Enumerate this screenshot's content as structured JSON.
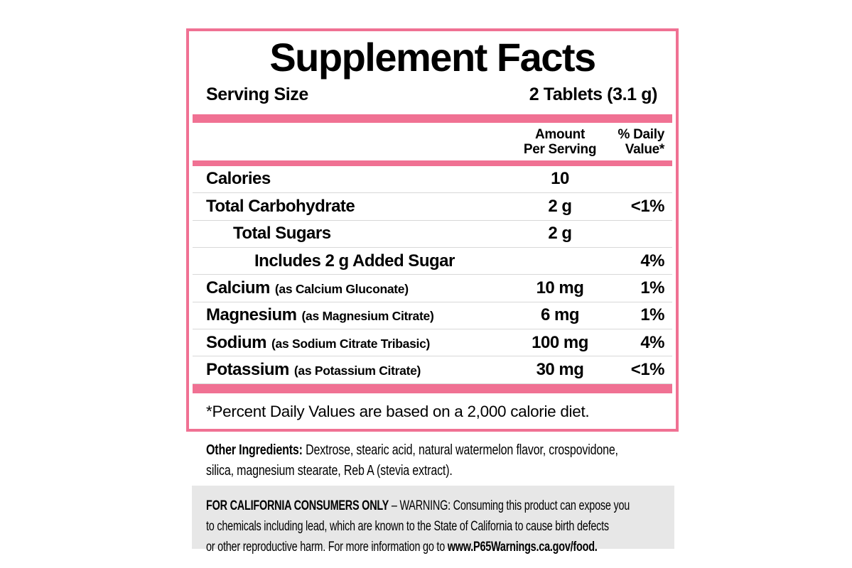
{
  "panel": {
    "title": "Supplement Facts",
    "serving": {
      "label": "Serving Size",
      "value": "2 Tablets (3.1 g)"
    },
    "columns": {
      "amount_line1": "Amount",
      "amount_line2": "Per Serving",
      "dv_line1": "% Daily",
      "dv_line2": "Value*"
    },
    "rows": [
      {
        "name": "Calories",
        "detail": "",
        "amount": "10",
        "dv": ""
      },
      {
        "name": "Total Carbohydrate",
        "detail": "",
        "amount": "2 g",
        "dv": "<1%"
      },
      {
        "name": "Total Sugars",
        "detail": "",
        "amount": "2 g",
        "dv": ""
      },
      {
        "name": "Includes 2 g Added Sugar",
        "detail": "",
        "amount": "",
        "dv": "4%"
      },
      {
        "name": "Calcium",
        "detail": "(as Calcium Gluconate)",
        "amount": "10 mg",
        "dv": "1%"
      },
      {
        "name": "Magnesium",
        "detail": "(as Magnesium Citrate)",
        "amount": "6 mg",
        "dv": "1%"
      },
      {
        "name": "Sodium",
        "detail": "(as Sodium Citrate Tribasic)",
        "amount": "100 mg",
        "dv": "4%"
      },
      {
        "name": "Potassium",
        "detail": "(as Potassium Citrate)",
        "amount": "30 mg",
        "dv": "<1%"
      }
    ],
    "footnote": "*Percent Daily Values are based on a 2,000 calorie diet."
  },
  "other_ingredients": {
    "label": "Other Ingredients:",
    "line1_rest": " Dextrose, stearic acid, natural watermelon flavor, crospovidone,",
    "line2": "silica, magnesium stearate, Reb A (stevia extract)."
  },
  "california_warning": {
    "bold_label": "FOR CALIFORNIA CONSUMERS ONLY",
    "line1_rest": " – WARNING: Consuming this product can expose you",
    "line2": "to chemicals including lead, which are known to the State of California to cause birth defects",
    "line3_start": "or other reproductive harm. For more information go to ",
    "url": "www.P65Warnings.ca.gov/food."
  },
  "colors": {
    "pink": "#F07193",
    "divider": "#D8D8D8",
    "warning_bg": "#E7E7E7",
    "text": "#000000"
  }
}
